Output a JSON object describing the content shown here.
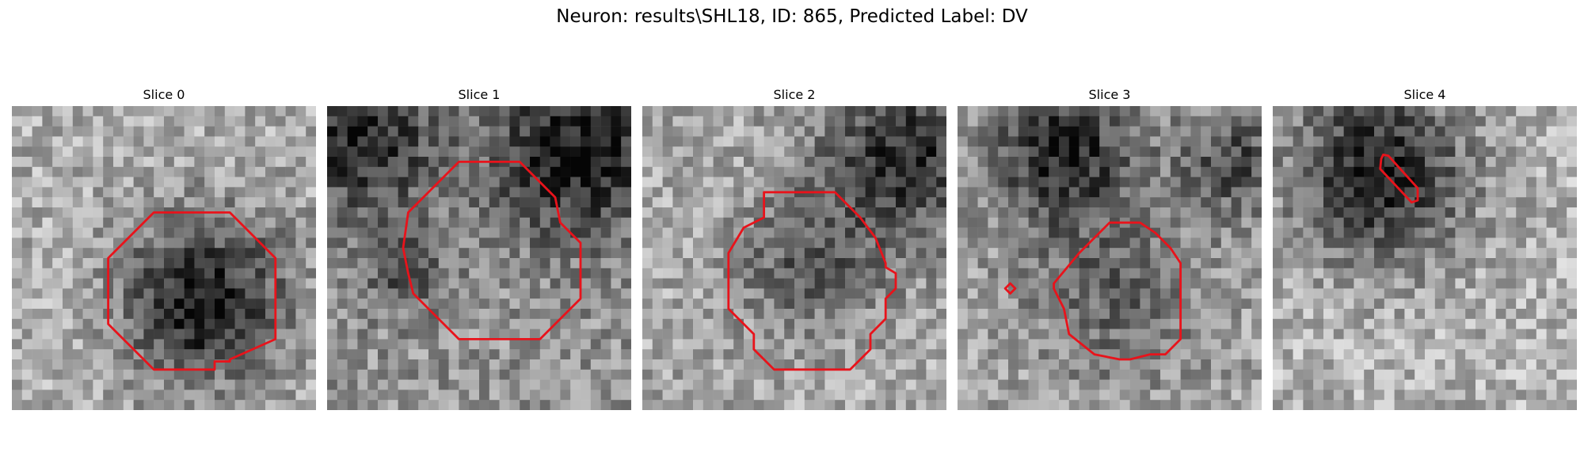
{
  "figure": {
    "title": "Neuron: results\\SHL18, ID: 865, Predicted Label: DV"
  },
  "slices": [
    {
      "title": "Slice 0"
    },
    {
      "title": "Slice 1"
    },
    {
      "title": "Slice 2"
    },
    {
      "title": "Slice 3"
    },
    {
      "title": "Slice 4"
    }
  ],
  "colors": {
    "contour": "#e8131b"
  }
}
